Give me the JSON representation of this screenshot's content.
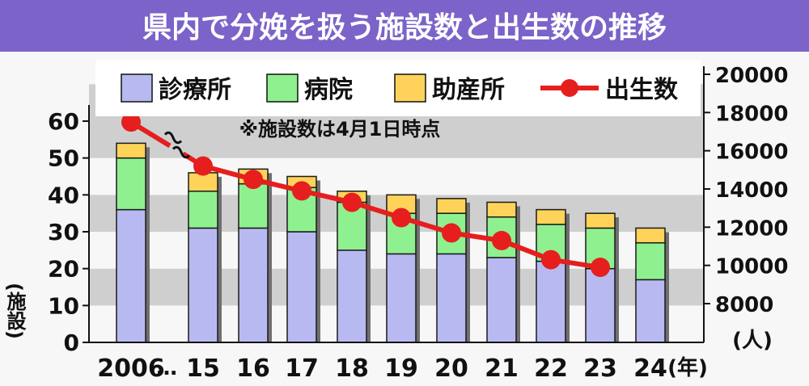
{
  "colors": {
    "title_bg": "#7b63c9",
    "title_fg": "#ffffff",
    "plot_band_gray": "#cfcfcf",
    "plot_band_white": "#f7f7f7",
    "bar_hospital": "#b9b9f2",
    "bar_clinic": "#8ff08f",
    "bar_midwife": "#ffd35a",
    "bar_outline": "#1a1a1a",
    "bar_shadow": "#6f6f6f",
    "line_births": "#e61e1e",
    "text": "#111111"
  },
  "chart_data": {
    "type": "bar",
    "title": "県内で分娩を扱う施設数と出生数の推移",
    "note": "※施設数は4月1日時点",
    "categories": [
      "2006",
      "15",
      "16",
      "17",
      "18",
      "19",
      "20",
      "21",
      "22",
      "23",
      "24"
    ],
    "x_suffix": "(年)",
    "axis_break_label": "…",
    "legend": [
      "診療所",
      "病院",
      "助産所",
      "出生数"
    ],
    "legend_placement": "top",
    "y_left": {
      "label": "(施設)",
      "ticks": [
        0,
        10,
        20,
        30,
        40,
        50,
        60
      ],
      "lim": [
        0,
        60
      ]
    },
    "y_right": {
      "label": "(人)",
      "ticks": [
        8000,
        10000,
        12000,
        14000,
        16000,
        18000,
        20000
      ],
      "lim": [
        8000,
        20000
      ]
    },
    "series": [
      {
        "name": "診療所",
        "kind": "bar",
        "stack": true,
        "values": [
          36,
          31,
          31,
          30,
          25,
          24,
          24,
          23,
          22,
          20,
          17
        ]
      },
      {
        "name": "病院",
        "kind": "bar",
        "stack": true,
        "values": [
          14,
          10,
          12,
          12,
          13,
          11,
          11,
          11,
          10,
          11,
          10
        ]
      },
      {
        "name": "助産所",
        "kind": "bar",
        "stack": true,
        "values": [
          4,
          5,
          4,
          3,
          3,
          5,
          4,
          4,
          4,
          4,
          4
        ]
      },
      {
        "name": "出生数",
        "kind": "line",
        "axis": "right",
        "values": [
          17500,
          15200,
          14500,
          13900,
          13300,
          12500,
          11700,
          11300,
          10300,
          9900,
          null
        ]
      }
    ]
  }
}
